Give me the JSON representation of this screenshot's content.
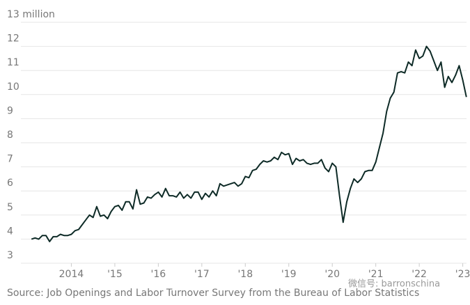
{
  "chart_data": {
    "type": "line",
    "source": "Source: Job Openings and Labor Turnover Survey from the Bureau of Labor Statistics",
    "watermark": "微信号: barronschina",
    "x": [
      "2013-02",
      "2013-03",
      "2013-04",
      "2013-05",
      "2013-06",
      "2013-07",
      "2013-08",
      "2013-09",
      "2013-10",
      "2013-11",
      "2013-12",
      "2014-01",
      "2014-02",
      "2014-03",
      "2014-04",
      "2014-05",
      "2014-06",
      "2014-07",
      "2014-08",
      "2014-09",
      "2014-10",
      "2014-11",
      "2014-12",
      "2015-01",
      "2015-02",
      "2015-03",
      "2015-04",
      "2015-05",
      "2015-06",
      "2015-07",
      "2015-08",
      "2015-09",
      "2015-10",
      "2015-11",
      "2015-12",
      "2016-01",
      "2016-02",
      "2016-03",
      "2016-04",
      "2016-05",
      "2016-06",
      "2016-07",
      "2016-08",
      "2016-09",
      "2016-10",
      "2016-11",
      "2016-12",
      "2017-01",
      "2017-02",
      "2017-03",
      "2017-04",
      "2017-05",
      "2017-06",
      "2017-07",
      "2017-08",
      "2017-09",
      "2017-10",
      "2017-11",
      "2017-12",
      "2018-01",
      "2018-02",
      "2018-03",
      "2018-04",
      "2018-05",
      "2018-06",
      "2018-07",
      "2018-08",
      "2018-09",
      "2018-10",
      "2018-11",
      "2018-12",
      "2019-01",
      "2019-02",
      "2019-03",
      "2019-04",
      "2019-05",
      "2019-06",
      "2019-07",
      "2019-08",
      "2019-09",
      "2019-10",
      "2019-11",
      "2019-12",
      "2020-01",
      "2020-02",
      "2020-03",
      "2020-04",
      "2020-05",
      "2020-06",
      "2020-07",
      "2020-08",
      "2020-09",
      "2020-10",
      "2020-11",
      "2020-12",
      "2021-01",
      "2021-02",
      "2021-03",
      "2021-04",
      "2021-05",
      "2021-06",
      "2021-07",
      "2021-08",
      "2021-09",
      "2021-10",
      "2021-11",
      "2021-12",
      "2022-01",
      "2022-02",
      "2022-03",
      "2022-04",
      "2022-05",
      "2022-06",
      "2022-07",
      "2022-08",
      "2022-09",
      "2022-10",
      "2022-11",
      "2022-12",
      "2023-01",
      "2023-02"
    ],
    "series": [
      {
        "color": "#0d2a26",
        "values": [
          4.0,
          4.05,
          4.0,
          4.15,
          4.15,
          3.9,
          4.1,
          4.1,
          4.2,
          4.15,
          4.15,
          4.2,
          4.35,
          4.4,
          4.6,
          4.8,
          5.0,
          4.9,
          5.35,
          4.95,
          5.0,
          4.85,
          5.15,
          5.35,
          5.4,
          5.2,
          5.55,
          5.55,
          5.25,
          6.05,
          5.45,
          5.5,
          5.75,
          5.7,
          5.85,
          5.95,
          5.75,
          6.1,
          5.8,
          5.8,
          5.75,
          5.95,
          5.7,
          5.85,
          5.7,
          5.95,
          5.95,
          5.65,
          5.9,
          5.75,
          6.0,
          5.8,
          6.3,
          6.2,
          6.25,
          6.3,
          6.35,
          6.2,
          6.3,
          6.6,
          6.55,
          6.85,
          6.9,
          7.1,
          7.25,
          7.2,
          7.25,
          7.4,
          7.3,
          7.6,
          7.5,
          7.55,
          7.1,
          7.35,
          7.25,
          7.3,
          7.15,
          7.1,
          7.15,
          7.15,
          7.3,
          6.95,
          6.8,
          7.15,
          7.0,
          5.8,
          4.7,
          5.55,
          6.1,
          6.5,
          6.35,
          6.5,
          6.8,
          6.85,
          6.85,
          7.2,
          7.8,
          8.4,
          9.3,
          9.85,
          10.1,
          10.9,
          10.95,
          10.9,
          11.35,
          11.2,
          11.85,
          11.5,
          11.6,
          12.0,
          11.8,
          11.4,
          11.0,
          11.35,
          10.3,
          10.75,
          10.5,
          10.8,
          11.2,
          10.6,
          9.9
        ]
      }
    ],
    "xlim": [
      "2013-01",
      "2023-03"
    ],
    "xticks": [
      {
        "value": "2014-01",
        "label": "2014"
      },
      {
        "value": "2015-01",
        "label": "'15"
      },
      {
        "value": "2016-01",
        "label": "'16"
      },
      {
        "value": "2017-01",
        "label": "'17"
      },
      {
        "value": "2018-01",
        "label": "'18"
      },
      {
        "value": "2019-01",
        "label": "'19"
      },
      {
        "value": "2020-01",
        "label": "'20"
      },
      {
        "value": "2021-01",
        "label": "'21"
      },
      {
        "value": "2022-01",
        "label": "'22"
      },
      {
        "value": "2023-01",
        "label": "'23"
      }
    ],
    "ylim": [
      3,
      13
    ],
    "yticks": [
      3,
      4,
      5,
      6,
      7,
      8,
      9,
      10,
      11,
      12,
      {
        "value": 13,
        "label": "13 million"
      }
    ],
    "grid": true
  }
}
